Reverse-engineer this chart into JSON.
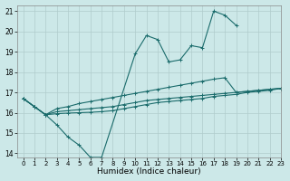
{
  "title": "",
  "xlabel": "Humidex (Indice chaleur)",
  "ylabel": "",
  "bg_color": "#cce8e8",
  "grid_color": "#b0cccc",
  "line_color": "#1a6b6b",
  "xlim": [
    -0.5,
    23
  ],
  "ylim": [
    13.8,
    21.3
  ],
  "yticks": [
    14,
    15,
    16,
    17,
    18,
    19,
    20,
    21
  ],
  "xticks": [
    0,
    1,
    2,
    3,
    4,
    5,
    6,
    7,
    8,
    9,
    10,
    11,
    12,
    13,
    14,
    15,
    16,
    17,
    18,
    19,
    20,
    21,
    22,
    23
  ],
  "series": [
    {
      "x": [
        0,
        1,
        2,
        3,
        4,
        5,
        6,
        7,
        10,
        11,
        12,
        13,
        14,
        15,
        16,
        17,
        18,
        19
      ],
      "y": [
        16.7,
        16.3,
        15.9,
        15.4,
        14.8,
        14.4,
        13.8,
        13.8,
        18.9,
        19.8,
        19.6,
        18.5,
        18.6,
        19.3,
        19.2,
        21.0,
        20.8,
        20.3
      ]
    },
    {
      "x": [
        0,
        1,
        2,
        3,
        4,
        5,
        6,
        7,
        8,
        9,
        10,
        11,
        12,
        13,
        14,
        15,
        16,
        17,
        18,
        19,
        20,
        21,
        22,
        23
      ],
      "y": [
        16.7,
        16.3,
        15.9,
        16.2,
        16.3,
        16.45,
        16.55,
        16.65,
        16.75,
        16.85,
        16.95,
        17.05,
        17.15,
        17.25,
        17.35,
        17.45,
        17.55,
        17.65,
        17.72,
        17.0,
        17.05,
        17.1,
        17.15,
        17.2
      ]
    },
    {
      "x": [
        0,
        1,
        2,
        3,
        4,
        5,
        6,
        7,
        8,
        9,
        10,
        11,
        12,
        13,
        14,
        15,
        16,
        17,
        18,
        19,
        20,
        21,
        22,
        23
      ],
      "y": [
        16.7,
        16.3,
        15.9,
        16.05,
        16.1,
        16.15,
        16.2,
        16.25,
        16.3,
        16.4,
        16.5,
        16.6,
        16.65,
        16.7,
        16.75,
        16.8,
        16.85,
        16.9,
        16.95,
        17.0,
        17.05,
        17.1,
        17.15,
        17.2
      ]
    },
    {
      "x": [
        0,
        1,
        2,
        3,
        4,
        5,
        6,
        7,
        8,
        9,
        10,
        11,
        12,
        13,
        14,
        15,
        16,
        17,
        18,
        19,
        20,
        21,
        22,
        23
      ],
      "y": [
        16.7,
        16.3,
        15.9,
        15.95,
        15.98,
        16.0,
        16.02,
        16.05,
        16.1,
        16.2,
        16.3,
        16.4,
        16.5,
        16.55,
        16.6,
        16.65,
        16.7,
        16.8,
        16.85,
        16.9,
        17.0,
        17.05,
        17.1,
        17.2
      ]
    }
  ]
}
